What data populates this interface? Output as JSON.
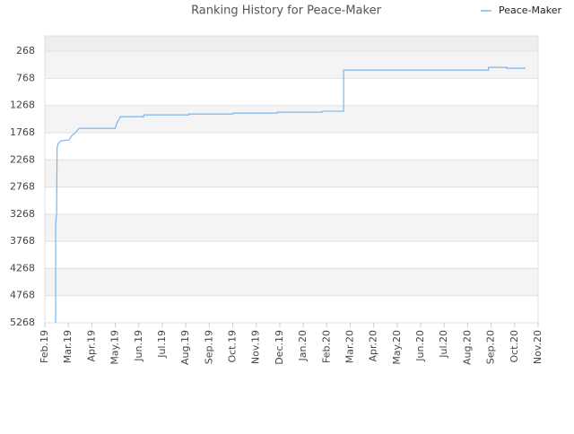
{
  "chart_data": {
    "type": "line",
    "title": "Ranking History for Peace-Maker",
    "xlim": [
      0,
      21
    ],
    "xticks": [
      {
        "value": 0,
        "label": "Feb.19"
      },
      {
        "value": 1,
        "label": "Mar.19"
      },
      {
        "value": 2,
        "label": "Apr.19"
      },
      {
        "value": 3,
        "label": "May.19"
      },
      {
        "value": 4,
        "label": "Jun.19"
      },
      {
        "value": 5,
        "label": "Jul.19"
      },
      {
        "value": 6,
        "label": "Aug.19"
      },
      {
        "value": 7,
        "label": "Sep.19"
      },
      {
        "value": 8,
        "label": "Oct.19"
      },
      {
        "value": 9,
        "label": "Nov.19"
      },
      {
        "value": 10,
        "label": "Dec.19"
      },
      {
        "value": 11,
        "label": "Jan.20"
      },
      {
        "value": 12,
        "label": "Feb.20"
      },
      {
        "value": 13,
        "label": "Mar.20"
      },
      {
        "value": 14,
        "label": "Apr.20"
      },
      {
        "value": 15,
        "label": "May.20"
      },
      {
        "value": 16,
        "label": "Jun.20"
      },
      {
        "value": 17,
        "label": "Jul.20"
      },
      {
        "value": 18,
        "label": "Aug.20"
      },
      {
        "value": 19,
        "label": "Sep.20"
      },
      {
        "value": 20,
        "label": "Oct.20"
      },
      {
        "value": 21,
        "label": "Nov.20"
      }
    ],
    "ylim": [
      5268,
      -15
    ],
    "yticks": [
      268,
      768,
      1268,
      1768,
      2268,
      2768,
      3268,
      3768,
      4268,
      4768,
      5268
    ],
    "grid": true,
    "legend": "top-right",
    "series": [
      {
        "name": "Peace-Maker",
        "color": "#7cb5ec",
        "x": [
          0.46,
          0.46,
          0.5,
          0.52,
          0.57,
          0.69,
          1.03,
          1.15,
          1.3,
          1.46,
          2.99,
          3.07,
          3.22,
          4.21,
          4.21,
          6.13,
          6.13,
          8.01,
          8.01,
          9.89,
          9.89,
          11.8,
          11.8,
          12.72,
          12.72,
          18.89,
          18.89,
          19.66,
          19.66,
          20.46
        ],
        "values": [
          5268,
          3453,
          3255,
          2050,
          1968,
          1918,
          1902,
          1819,
          1770,
          1687,
          1687,
          1588,
          1473,
          1473,
          1440,
          1440,
          1423,
          1423,
          1407,
          1407,
          1390,
          1390,
          1373,
          1373,
          615,
          615,
          565,
          565,
          582,
          582
        ]
      }
    ]
  }
}
